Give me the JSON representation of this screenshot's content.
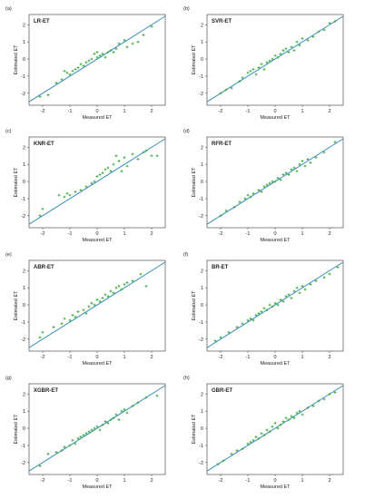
{
  "colors": {
    "line": "#3b8fc2",
    "point": "#3aa83a",
    "axis": "#333333",
    "text": "#222222"
  },
  "chart_data": [
    {
      "type": "scatter",
      "panel": "(a)",
      "title": "LR-ET",
      "xlabel": "Measured ET",
      "ylabel": "Estimated ET",
      "xlim": [
        -2.5,
        2.5
      ],
      "ylim": [
        -2.7,
        2.6
      ],
      "xticks": [
        "-2",
        "-1",
        "0",
        "1",
        "2"
      ],
      "yticks": [
        "-2",
        "-1",
        "0",
        "1",
        "2"
      ],
      "reference_line": [
        [
          -2.5,
          -2.5
        ],
        [
          2.5,
          2.5
        ]
      ],
      "points": [
        [
          -2.1,
          -2.2
        ],
        [
          -1.8,
          -2.1
        ],
        [
          -1.5,
          -1.4
        ],
        [
          -1.3,
          -1.2
        ],
        [
          -1.2,
          -0.7
        ],
        [
          -1.1,
          -0.8
        ],
        [
          -1.0,
          -0.9
        ],
        [
          -0.9,
          -0.7
        ],
        [
          -0.8,
          -0.6
        ],
        [
          -0.7,
          -0.5
        ],
        [
          -0.6,
          -0.3
        ],
        [
          -0.5,
          -0.4
        ],
        [
          -0.4,
          -0.2
        ],
        [
          -0.3,
          -0.1
        ],
        [
          -0.2,
          0.0
        ],
        [
          -0.1,
          0.3
        ],
        [
          0.0,
          0.4
        ],
        [
          0.0,
          0.1
        ],
        [
          0.1,
          0.2
        ],
        [
          0.2,
          0.3
        ],
        [
          0.3,
          0.1
        ],
        [
          0.4,
          0.4
        ],
        [
          0.5,
          0.5
        ],
        [
          0.6,
          0.4
        ],
        [
          0.7,
          0.6
        ],
        [
          0.8,
          0.9
        ],
        [
          1.0,
          1.1
        ],
        [
          1.1,
          0.7
        ],
        [
          1.3,
          0.9
        ],
        [
          1.5,
          1.0
        ],
        [
          1.7,
          1.4
        ],
        [
          2.0,
          1.9
        ]
      ]
    },
    {
      "type": "scatter",
      "panel": "(b)",
      "title": "SVR-ET",
      "xlabel": "Measured ET",
      "ylabel": "Estimated ET",
      "xlim": [
        -2.5,
        2.5
      ],
      "ylim": [
        -2.7,
        2.6
      ],
      "xticks": [
        "-2",
        "-1",
        "0",
        "1",
        "2"
      ],
      "yticks": [
        "-2",
        "-1",
        "0",
        "1",
        "2"
      ],
      "reference_line": [
        [
          -2.5,
          -2.5
        ],
        [
          2.5,
          2.5
        ]
      ],
      "points": [
        [
          -2.0,
          -2.0
        ],
        [
          -1.8,
          -1.8
        ],
        [
          -1.6,
          -1.7
        ],
        [
          -1.3,
          -1.3
        ],
        [
          -1.2,
          -1.1
        ],
        [
          -1.0,
          -0.8
        ],
        [
          -0.9,
          -0.7
        ],
        [
          -0.8,
          -0.6
        ],
        [
          -0.7,
          -0.9
        ],
        [
          -0.6,
          -0.5
        ],
        [
          -0.5,
          -0.3
        ],
        [
          -0.4,
          -0.6
        ],
        [
          -0.3,
          -0.2
        ],
        [
          -0.2,
          -0.1
        ],
        [
          -0.1,
          0.0
        ],
        [
          0.0,
          0.2
        ],
        [
          0.1,
          0.1
        ],
        [
          0.2,
          0.3
        ],
        [
          0.3,
          0.5
        ],
        [
          0.4,
          0.6
        ],
        [
          0.5,
          0.4
        ],
        [
          0.6,
          0.7
        ],
        [
          0.7,
          0.5
        ],
        [
          0.8,
          1.0
        ],
        [
          0.9,
          0.8
        ],
        [
          1.0,
          1.2
        ],
        [
          1.2,
          1.1
        ],
        [
          1.4,
          1.3
        ],
        [
          1.6,
          1.6
        ],
        [
          1.8,
          1.7
        ],
        [
          2.0,
          2.1
        ],
        [
          2.2,
          2.2
        ]
      ]
    },
    {
      "type": "scatter",
      "panel": "(c)",
      "title": "KNR-ET",
      "xlabel": "Measured ET",
      "ylabel": "Estimated ET",
      "xlim": [
        -2.5,
        2.5
      ],
      "ylim": [
        -2.7,
        2.6
      ],
      "xticks": [
        "-2",
        "-1",
        "0",
        "1",
        "2"
      ],
      "yticks": [
        "-2",
        "-1",
        "0",
        "1",
        "2"
      ],
      "reference_line": [
        [
          -2.5,
          -2.5
        ],
        [
          2.5,
          2.5
        ]
      ],
      "points": [
        [
          -2.1,
          -2.0
        ],
        [
          -2.0,
          -1.6
        ],
        [
          -1.4,
          -0.8
        ],
        [
          -1.2,
          -0.9
        ],
        [
          -1.1,
          -0.7
        ],
        [
          -1.0,
          -0.8
        ],
        [
          -0.8,
          -0.6
        ],
        [
          -0.6,
          -0.5
        ],
        [
          -0.4,
          -0.3
        ],
        [
          -0.2,
          -0.1
        ],
        [
          -0.1,
          0.0
        ],
        [
          0.0,
          0.3
        ],
        [
          0.1,
          0.4
        ],
        [
          0.2,
          0.5
        ],
        [
          0.3,
          0.7
        ],
        [
          0.4,
          0.8
        ],
        [
          0.5,
          0.6
        ],
        [
          0.6,
          1.0
        ],
        [
          0.7,
          1.5
        ],
        [
          0.8,
          1.2
        ],
        [
          0.9,
          0.6
        ],
        [
          1.0,
          1.4
        ],
        [
          1.1,
          0.9
        ],
        [
          1.3,
          1.6
        ],
        [
          1.5,
          1.3
        ],
        [
          1.7,
          1.7
        ],
        [
          1.8,
          1.8
        ],
        [
          2.0,
          1.5
        ],
        [
          2.2,
          1.5
        ]
      ]
    },
    {
      "type": "scatter",
      "panel": "(d)",
      "title": "RFR-ET",
      "xlabel": "Measured ET",
      "ylabel": "Estimated ET",
      "xlim": [
        -2.5,
        2.5
      ],
      "ylim": [
        -2.7,
        2.6
      ],
      "xticks": [
        "-2",
        "-1",
        "0",
        "1",
        "2"
      ],
      "yticks": [
        "-2",
        "-1",
        "0",
        "1",
        "2"
      ],
      "reference_line": [
        [
          -2.5,
          -2.5
        ],
        [
          2.5,
          2.5
        ]
      ],
      "points": [
        [
          -2.0,
          -2.0
        ],
        [
          -1.8,
          -1.7
        ],
        [
          -1.5,
          -1.5
        ],
        [
          -1.3,
          -1.2
        ],
        [
          -1.1,
          -1.0
        ],
        [
          -1.0,
          -0.8
        ],
        [
          -0.9,
          -0.9
        ],
        [
          -0.8,
          -0.7
        ],
        [
          -0.6,
          -0.5
        ],
        [
          -0.5,
          -0.6
        ],
        [
          -0.4,
          -0.3
        ],
        [
          -0.3,
          -0.2
        ],
        [
          -0.2,
          -0.1
        ],
        [
          -0.1,
          0.0
        ],
        [
          0.0,
          0.0
        ],
        [
          0.1,
          0.2
        ],
        [
          0.2,
          0.1
        ],
        [
          0.3,
          0.4
        ],
        [
          0.4,
          0.5
        ],
        [
          0.5,
          0.4
        ],
        [
          0.6,
          0.7
        ],
        [
          0.7,
          0.8
        ],
        [
          0.8,
          0.6
        ],
        [
          0.9,
          1.0
        ],
        [
          1.0,
          1.2
        ],
        [
          1.1,
          0.9
        ],
        [
          1.2,
          1.3
        ],
        [
          1.3,
          1.1
        ],
        [
          1.5,
          1.4
        ],
        [
          1.8,
          1.7
        ],
        [
          2.2,
          2.3
        ]
      ]
    },
    {
      "type": "scatter",
      "panel": "(e)",
      "title": "ABR-ET",
      "xlabel": "Measured ET",
      "ylabel": "Estimated ET",
      "xlim": [
        -2.5,
        2.5
      ],
      "ylim": [
        -2.7,
        2.6
      ],
      "xticks": [
        "-2",
        "-1",
        "0",
        "1",
        "2"
      ],
      "yticks": [
        "-2",
        "-1",
        "0",
        "1",
        "2"
      ],
      "reference_line": [
        [
          -2.5,
          -2.5
        ],
        [
          2.5,
          2.5
        ]
      ],
      "points": [
        [
          -2.1,
          -1.9
        ],
        [
          -2.0,
          -1.6
        ],
        [
          -1.6,
          -1.3
        ],
        [
          -1.3,
          -1.1
        ],
        [
          -1.2,
          -0.8
        ],
        [
          -1.0,
          -0.9
        ],
        [
          -0.9,
          -0.6
        ],
        [
          -0.8,
          -0.7
        ],
        [
          -0.7,
          -0.4
        ],
        [
          -0.5,
          -0.3
        ],
        [
          -0.4,
          -0.5
        ],
        [
          -0.3,
          -0.1
        ],
        [
          -0.2,
          0.1
        ],
        [
          -0.1,
          0.0
        ],
        [
          0.0,
          0.3
        ],
        [
          0.1,
          0.2
        ],
        [
          0.2,
          0.4
        ],
        [
          0.3,
          0.6
        ],
        [
          0.4,
          0.5
        ],
        [
          0.5,
          0.8
        ],
        [
          0.6,
          0.7
        ],
        [
          0.7,
          1.0
        ],
        [
          0.8,
          1.1
        ],
        [
          0.9,
          0.9
        ],
        [
          1.0,
          1.2
        ],
        [
          1.1,
          1.3
        ],
        [
          1.3,
          1.4
        ],
        [
          1.6,
          1.8
        ],
        [
          1.8,
          1.1
        ]
      ]
    },
    {
      "type": "scatter",
      "panel": "(f)",
      "title": "BR-ET",
      "xlabel": "Measured ET",
      "ylabel": "Estimated ET",
      "xlim": [
        -2.5,
        2.5
      ],
      "ylim": [
        -2.7,
        2.6
      ],
      "xticks": [
        "-2",
        "-1",
        "0",
        "1",
        "2"
      ],
      "yticks": [
        "-2",
        "-1",
        "0",
        "1",
        "2"
      ],
      "reference_line": [
        [
          -2.5,
          -2.5
        ],
        [
          2.5,
          2.5
        ]
      ],
      "points": [
        [
          -2.2,
          -2.1
        ],
        [
          -2.0,
          -1.9
        ],
        [
          -1.7,
          -1.6
        ],
        [
          -1.4,
          -1.3
        ],
        [
          -1.2,
          -1.1
        ],
        [
          -1.0,
          -0.9
        ],
        [
          -0.9,
          -0.8
        ],
        [
          -0.8,
          -0.9
        ],
        [
          -0.7,
          -0.6
        ],
        [
          -0.6,
          -0.5
        ],
        [
          -0.5,
          -0.4
        ],
        [
          -0.4,
          -0.2
        ],
        [
          -0.3,
          -0.3
        ],
        [
          -0.2,
          0.0
        ],
        [
          -0.1,
          -0.1
        ],
        [
          0.0,
          0.1
        ],
        [
          0.1,
          0.0
        ],
        [
          0.2,
          0.3
        ],
        [
          0.3,
          0.2
        ],
        [
          0.4,
          0.5
        ],
        [
          0.5,
          0.6
        ],
        [
          0.6,
          0.4
        ],
        [
          0.7,
          0.8
        ],
        [
          0.8,
          1.0
        ],
        [
          0.9,
          0.7
        ],
        [
          1.0,
          1.1
        ],
        [
          1.1,
          0.9
        ],
        [
          1.3,
          1.2
        ],
        [
          1.5,
          1.4
        ],
        [
          1.8,
          1.6
        ],
        [
          2.0,
          1.8
        ],
        [
          2.3,
          2.2
        ]
      ]
    },
    {
      "type": "scatter",
      "panel": "(g)",
      "title": "XGBR-ET",
      "xlabel": "Measured ET",
      "ylabel": "Estimated ET",
      "xlim": [
        -2.5,
        2.5
      ],
      "ylim": [
        -2.7,
        2.6
      ],
      "xticks": [
        "-2",
        "-1",
        "0",
        "1",
        "2"
      ],
      "yticks": [
        "-2",
        "-1",
        "0",
        "1",
        "2"
      ],
      "reference_line": [
        [
          -2.5,
          -2.5
        ],
        [
          2.5,
          2.5
        ]
      ],
      "points": [
        [
          -2.1,
          -2.2
        ],
        [
          -1.8,
          -1.5
        ],
        [
          -1.5,
          -1.4
        ],
        [
          -1.3,
          -1.3
        ],
        [
          -1.2,
          -1.1
        ],
        [
          -1.0,
          -1.0
        ],
        [
          -0.9,
          -0.7
        ],
        [
          -0.8,
          -0.9
        ],
        [
          -0.7,
          -0.6
        ],
        [
          -0.6,
          -0.5
        ],
        [
          -0.5,
          -0.4
        ],
        [
          -0.4,
          -0.3
        ],
        [
          -0.3,
          -0.2
        ],
        [
          -0.2,
          -0.1
        ],
        [
          -0.1,
          0.0
        ],
        [
          0.0,
          0.1
        ],
        [
          0.1,
          -0.1
        ],
        [
          0.2,
          0.2
        ],
        [
          0.3,
          0.4
        ],
        [
          0.4,
          0.3
        ],
        [
          0.5,
          0.5
        ],
        [
          0.6,
          0.6
        ],
        [
          0.7,
          0.8
        ],
        [
          0.8,
          0.5
        ],
        [
          0.9,
          1.0
        ],
        [
          1.0,
          1.1
        ],
        [
          1.1,
          0.9
        ],
        [
          1.3,
          1.3
        ],
        [
          1.5,
          1.5
        ],
        [
          1.8,
          1.8
        ],
        [
          2.2,
          1.9
        ]
      ]
    },
    {
      "type": "scatter",
      "panel": "(h)",
      "title": "GBR-ET",
      "xlabel": "Measured ET",
      "ylabel": "Estimated ET",
      "xlim": [
        -2.5,
        2.5
      ],
      "ylim": [
        -2.7,
        2.6
      ],
      "xticks": [
        "-2",
        "-1",
        "0",
        "1",
        "2"
      ],
      "yticks": [
        "-2",
        "-1",
        "0",
        "1",
        "2"
      ],
      "reference_line": [
        [
          -2.5,
          -2.5
        ],
        [
          2.5,
          2.5
        ]
      ],
      "points": [
        [
          -2.1,
          -2.1
        ],
        [
          -1.9,
          -1.9
        ],
        [
          -1.6,
          -1.5
        ],
        [
          -1.4,
          -1.3
        ],
        [
          -1.2,
          -1.2
        ],
        [
          -1.0,
          -0.9
        ],
        [
          -0.9,
          -0.8
        ],
        [
          -0.8,
          -0.7
        ],
        [
          -0.7,
          -0.5
        ],
        [
          -0.6,
          -0.6
        ],
        [
          -0.5,
          -0.3
        ],
        [
          -0.4,
          -0.4
        ],
        [
          -0.3,
          -0.1
        ],
        [
          -0.2,
          -0.2
        ],
        [
          -0.1,
          0.1
        ],
        [
          0.0,
          0.3
        ],
        [
          0.1,
          0.0
        ],
        [
          0.2,
          0.2
        ],
        [
          0.3,
          0.4
        ],
        [
          0.4,
          0.6
        ],
        [
          0.5,
          0.5
        ],
        [
          0.6,
          0.7
        ],
        [
          0.7,
          0.6
        ],
        [
          0.8,
          0.9
        ],
        [
          0.9,
          1.0
        ],
        [
          1.0,
          0.8
        ],
        [
          1.2,
          1.2
        ],
        [
          1.4,
          1.3
        ],
        [
          1.6,
          1.6
        ],
        [
          1.8,
          1.7
        ],
        [
          2.0,
          2.0
        ],
        [
          2.2,
          2.1
        ]
      ]
    }
  ]
}
